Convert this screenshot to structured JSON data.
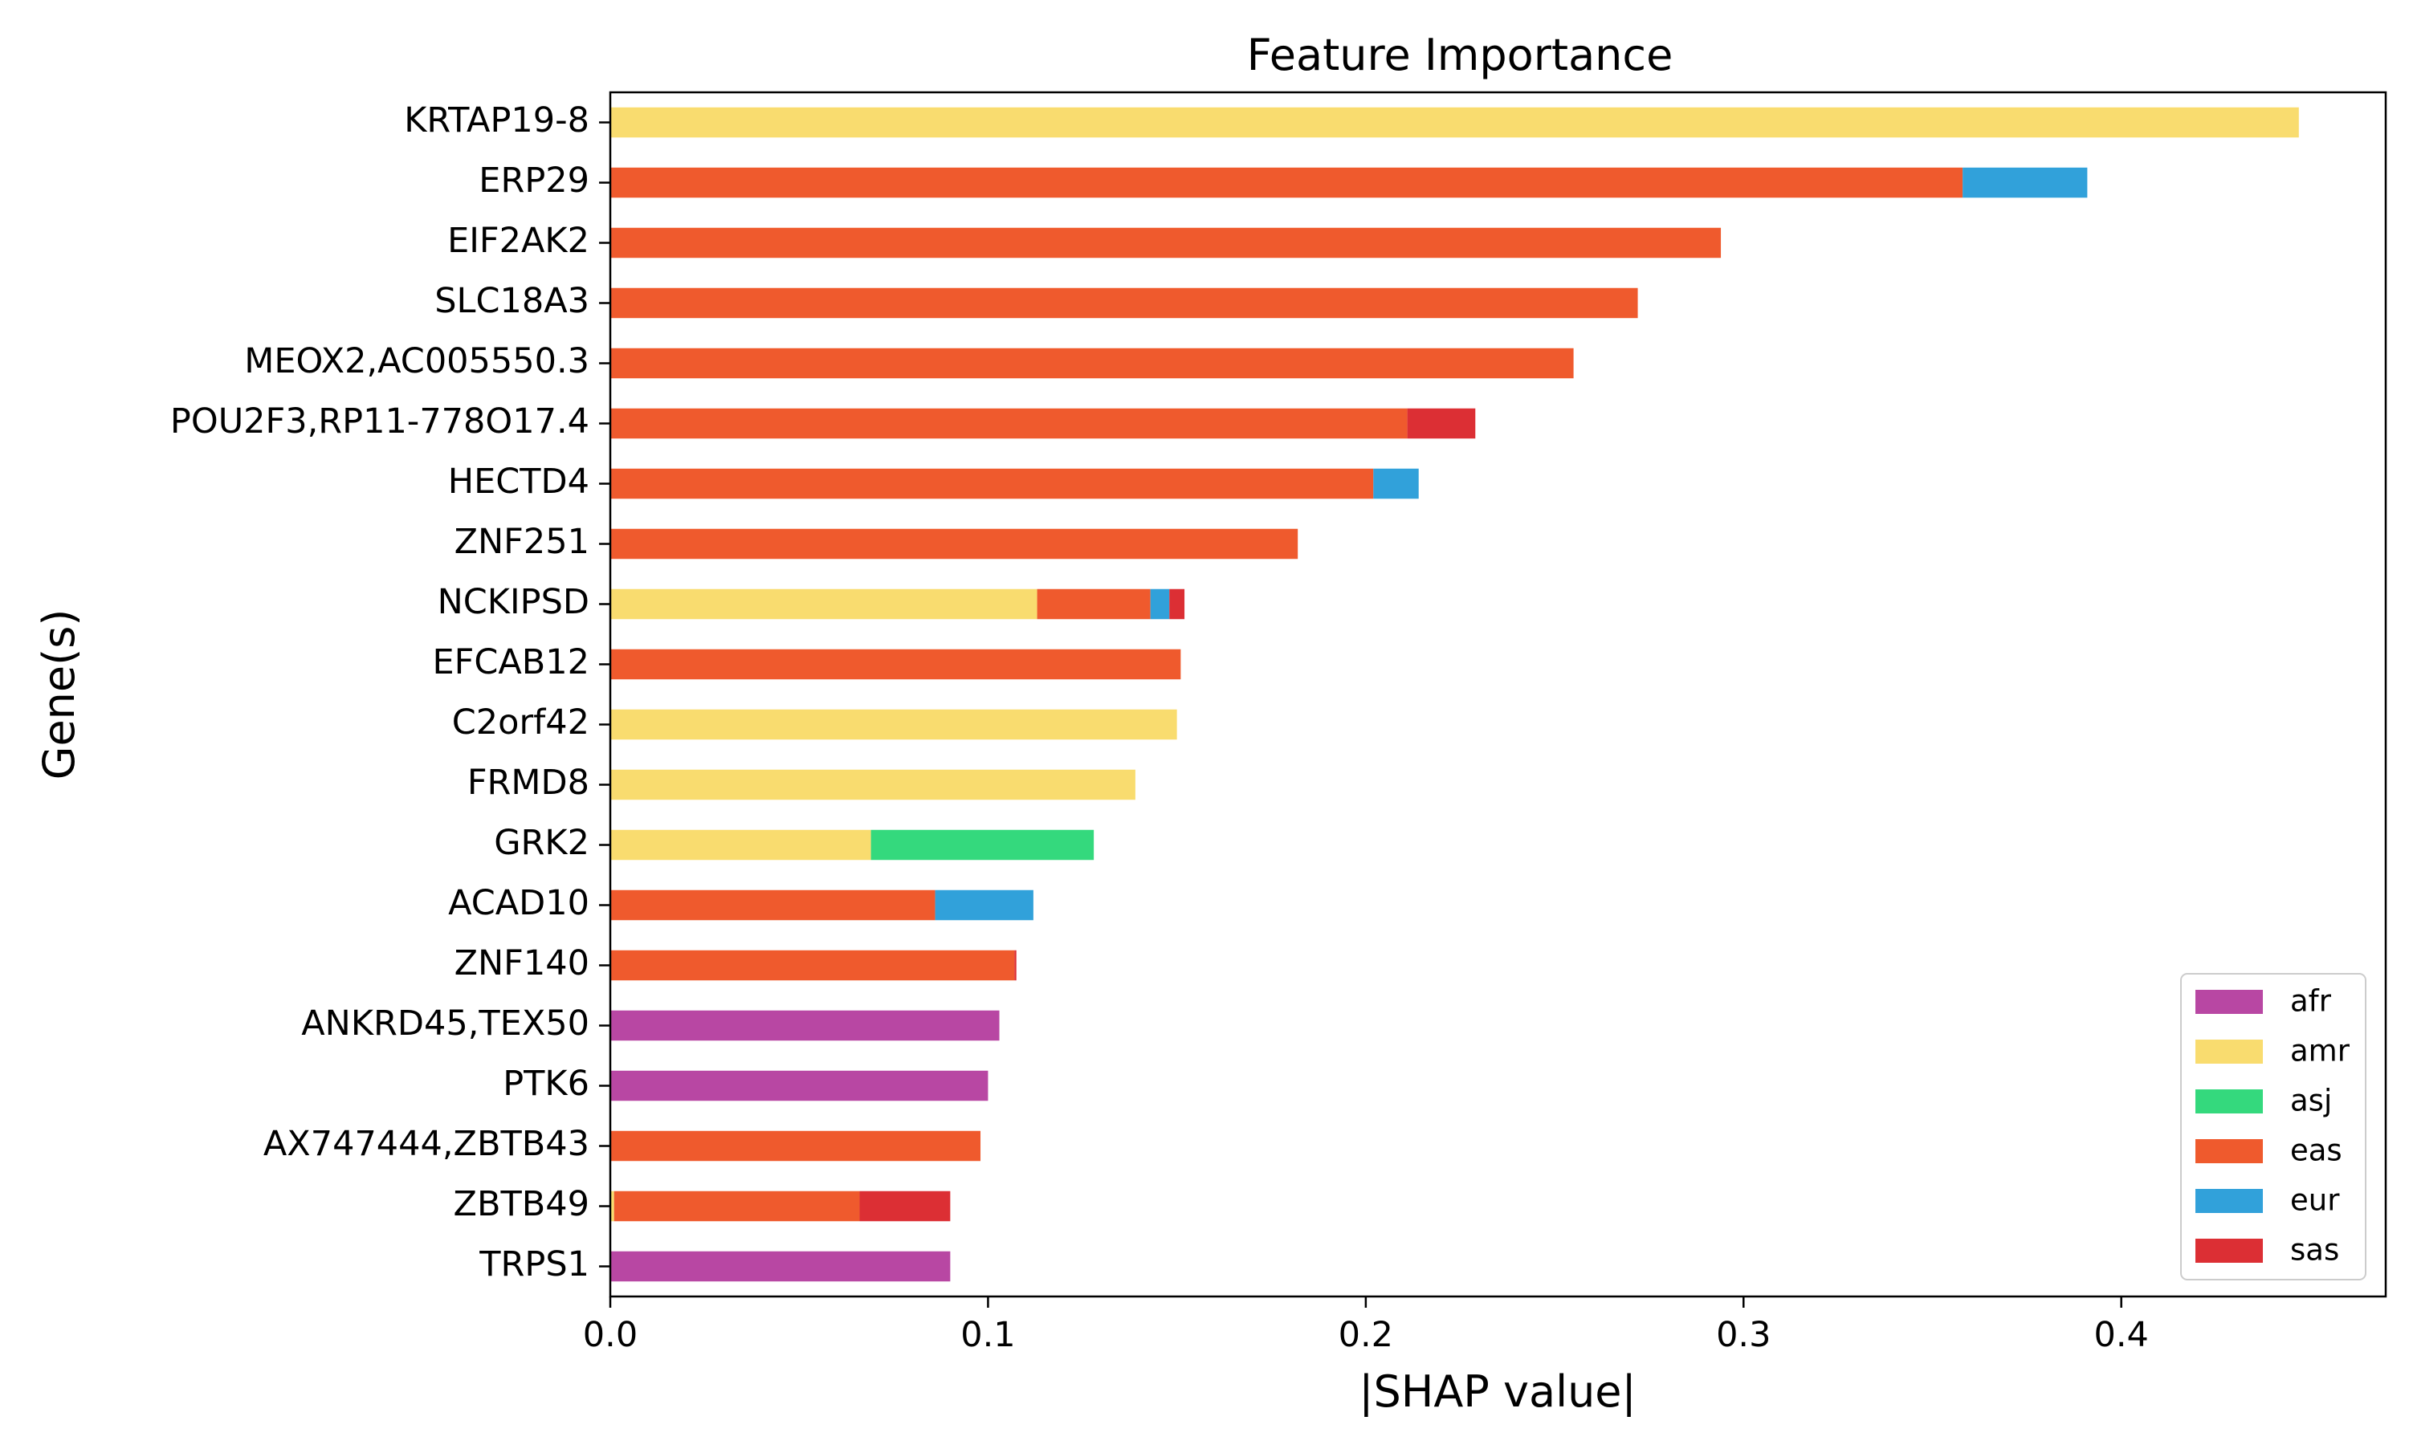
{
  "chart_data": {
    "type": "bar",
    "orientation": "horizontal",
    "stacked": true,
    "title": "Feature Importance",
    "xlabel": "|SHAP value|",
    "ylabel": "Gene(s)",
    "xlim": [
      0,
      0.47
    ],
    "xticks": [
      0.0,
      0.1,
      0.2,
      0.3,
      0.4
    ],
    "xtick_labels": [
      "0.0",
      "0.1",
      "0.2",
      "0.3",
      "0.4"
    ],
    "grid": false,
    "legend_position": "lower-right",
    "categories": [
      "KRTAP19-8",
      "ERP29",
      "EIF2AK2",
      "SLC18A3",
      "MEOX2,AC005550.3",
      "POU2F3,RP11-778O17.4",
      "HECTD4",
      "ZNF251",
      "NCKIPSD",
      "EFCAB12",
      "C2orf42",
      "FRMD8",
      "GRK2",
      "ACAD10",
      "ZNF140",
      "ANKRD45,TEX50",
      "PTK6",
      "AX747444,ZBTB43",
      "ZBTB49",
      "TRPS1"
    ],
    "series": [
      {
        "name": "afr",
        "color": "#b847a3",
        "values": [
          0,
          0,
          0,
          0,
          0,
          0,
          0,
          0,
          0,
          0,
          0,
          0,
          0,
          0,
          0,
          0.103,
          0.1,
          0,
          0,
          0.09
        ]
      },
      {
        "name": "amr",
        "color": "#f9dc6f",
        "values": [
          0.447,
          0,
          0,
          0,
          0,
          0,
          0,
          0,
          0.113,
          0,
          0.15,
          0.139,
          0.069,
          0,
          0,
          0,
          0,
          0,
          0.001,
          0
        ]
      },
      {
        "name": "asj",
        "color": "#34d97d",
        "values": [
          0,
          0,
          0,
          0,
          0,
          0,
          0,
          0,
          0,
          0,
          0,
          0,
          0.059,
          0,
          0,
          0,
          0,
          0,
          0,
          0
        ]
      },
      {
        "name": "eas",
        "color": "#ef5a2d",
        "values": [
          0,
          0.358,
          0.294,
          0.272,
          0.255,
          0.211,
          0.202,
          0.182,
          0.03,
          0.151,
          0,
          0,
          0,
          0.086,
          0.107,
          0,
          0,
          0.098,
          0.065,
          0
        ]
      },
      {
        "name": "eur",
        "color": "#31a1da",
        "values": [
          0,
          0.033,
          0,
          0,
          0,
          0,
          0.012,
          0,
          0.005,
          0,
          0,
          0,
          0,
          0.026,
          0,
          0,
          0,
          0,
          0,
          0
        ]
      },
      {
        "name": "sas",
        "color": "#dc2f34",
        "values": [
          0,
          0,
          0,
          0,
          0,
          0.018,
          0,
          0,
          0.004,
          0,
          0,
          0,
          0,
          0,
          0.0005,
          0,
          0,
          0,
          0.024,
          0
        ]
      }
    ]
  }
}
